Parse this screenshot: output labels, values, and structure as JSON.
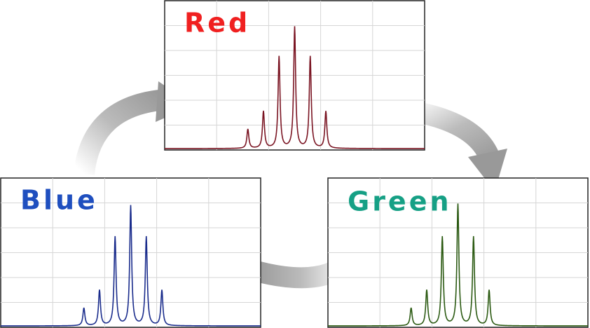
{
  "panels": [
    {
      "label": "Red",
      "label_color": "#f02020",
      "line_color": "#7a1422",
      "xlim": [
        0,
        100
      ],
      "ylim": [
        0,
        100
      ],
      "peaks_x": [
        32,
        38,
        44,
        50,
        56,
        62
      ],
      "peaks_y": [
        13,
        25,
        62,
        82,
        62,
        25
      ]
    },
    {
      "label": "Green",
      "label_color": "#16a085",
      "line_color": "#2b5a12",
      "xlim": [
        0,
        100
      ],
      "ylim": [
        0,
        100
      ],
      "peaks_x": [
        32,
        38,
        44,
        50,
        56,
        62
      ],
      "peaks_y": [
        12,
        24,
        60,
        82,
        60,
        24
      ]
    },
    {
      "label": "Blue",
      "label_color": "#1f4fbf",
      "line_color": "#1a2c8c",
      "xlim": [
        0,
        100
      ],
      "ylim": [
        0,
        100
      ],
      "peaks_x": [
        32,
        38,
        44,
        50,
        56,
        62
      ],
      "peaks_y": [
        12,
        24,
        60,
        81,
        60,
        24
      ]
    }
  ]
}
